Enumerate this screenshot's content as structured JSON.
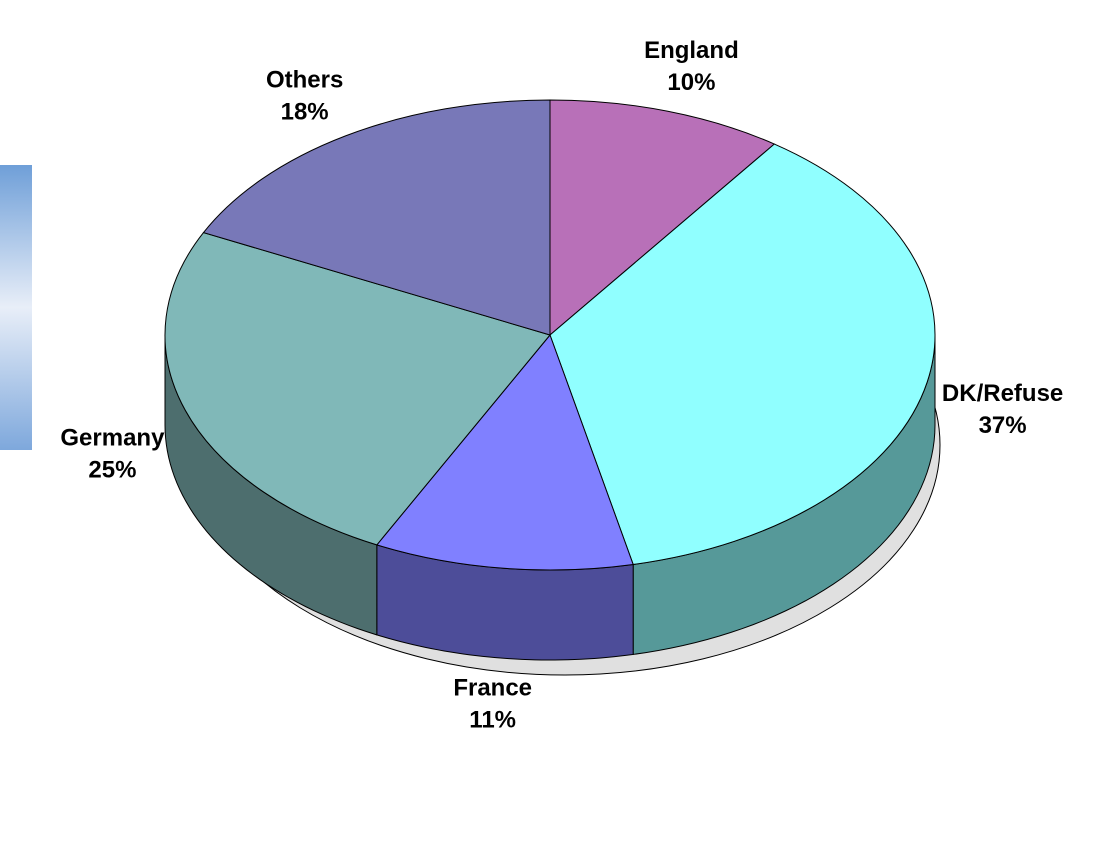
{
  "chart_data": {
    "type": "pie",
    "categories": [
      "England",
      "DK/Refuse",
      "France",
      "Germany",
      "Others"
    ],
    "values": [
      10,
      37,
      11,
      25,
      18
    ],
    "value_labels": [
      "10%",
      "37%",
      "11%",
      "25%",
      "18%"
    ],
    "colors": [
      "#b870b8",
      "#90ffff",
      "#8080ff",
      "#80b8b8",
      "#7878b8"
    ]
  }
}
